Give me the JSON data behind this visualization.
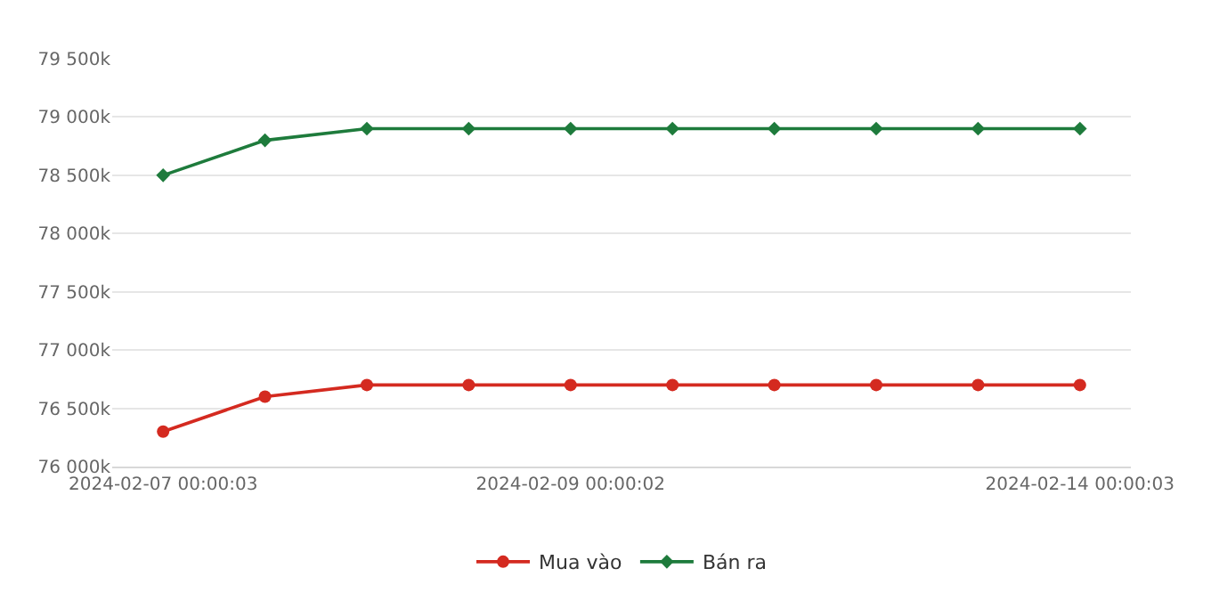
{
  "chart_data": {
    "type": "line",
    "categories": [
      "2024-02-07 00:00:03",
      null,
      null,
      null,
      "2024-02-09 00:00:02",
      null,
      null,
      null,
      null,
      "2024-02-14 00:00:03"
    ],
    "series": [
      {
        "name": "Mua vào",
        "color": "#d42a20",
        "marker": "circle",
        "values": [
          76300,
          76600,
          76700,
          76700,
          76700,
          76700,
          76700,
          76700,
          76700,
          76700
        ]
      },
      {
        "name": "Bán ra",
        "color": "#1e7b3c",
        "marker": "diamond",
        "values": [
          78500,
          78800,
          78900,
          78900,
          78900,
          78900,
          78900,
          78900,
          78900,
          78900
        ]
      }
    ],
    "ylim": [
      76000,
      79500
    ],
    "yticks": [
      {
        "value": 76000,
        "label": "76 000k"
      },
      {
        "value": 76500,
        "label": "76 500k"
      },
      {
        "value": 77000,
        "label": "77 000k"
      },
      {
        "value": 77500,
        "label": "77 500k"
      },
      {
        "value": 78000,
        "label": "78 000k"
      },
      {
        "value": 78500,
        "label": "78 500k"
      },
      {
        "value": 79000,
        "label": "79 000k"
      },
      {
        "value": 79500,
        "label": "79 500k"
      }
    ],
    "grid": "y",
    "legend": "bottom",
    "line_style": "solid"
  }
}
